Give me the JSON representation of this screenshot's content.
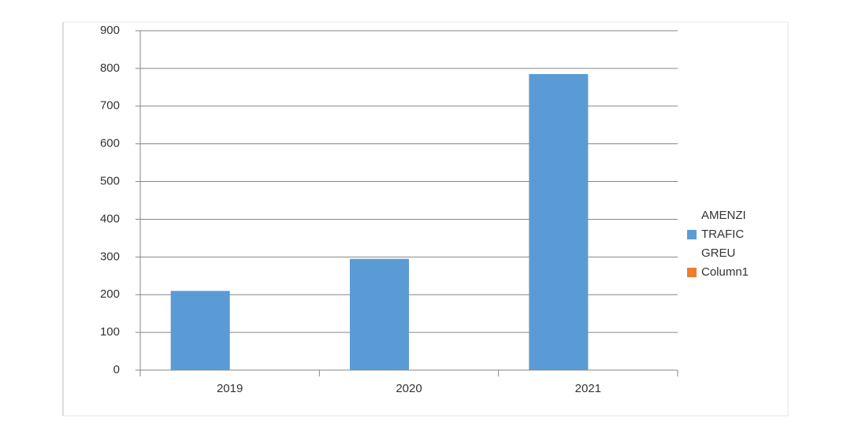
{
  "chart_data": {
    "type": "bar",
    "categories": [
      "2019",
      "2020",
      "2021"
    ],
    "series": [
      {
        "name": "AMENZI TRAFIC GREU",
        "color": "#5b9bd5",
        "values": [
          210,
          295,
          785
        ]
      },
      {
        "name": "Column1",
        "color": "#ed7d31",
        "values": [
          null,
          null,
          null
        ]
      }
    ],
    "ylim": [
      0,
      900
    ],
    "yticks": [
      0,
      100,
      200,
      300,
      400,
      500,
      600,
      700,
      800,
      900
    ],
    "grid": true,
    "legend": "right"
  }
}
